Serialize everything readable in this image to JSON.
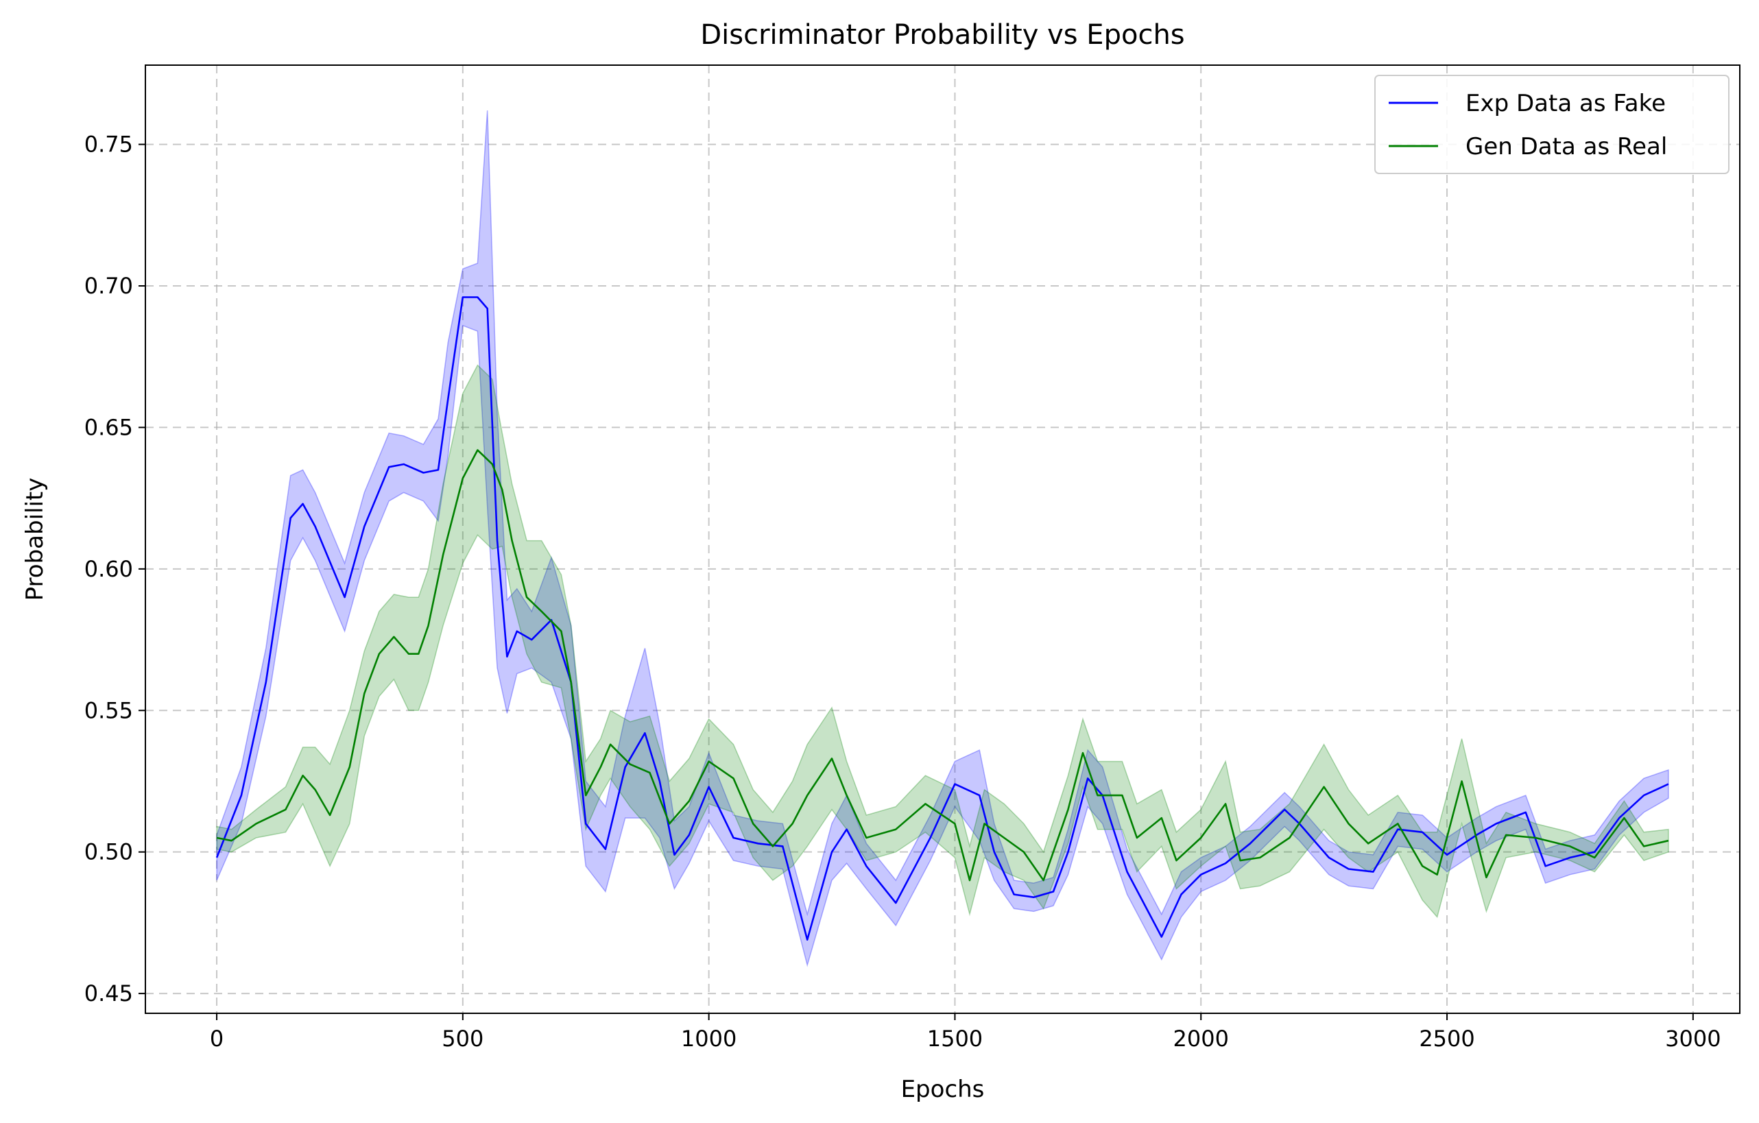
{
  "chart_data": {
    "type": "line",
    "title": "Discriminator Probability vs Epochs",
    "xlabel": "Epochs",
    "ylabel": "Probability",
    "xlim": [
      -145,
      3095
    ],
    "ylim": [
      0.443,
      0.778
    ],
    "xticks": [
      0,
      500,
      1000,
      1500,
      2000,
      2500,
      3000
    ],
    "xtick_labels": [
      "0",
      "500",
      "1000",
      "1500",
      "2000",
      "2500",
      "3000"
    ],
    "yticks": [
      0.45,
      0.5,
      0.55,
      0.6,
      0.65,
      0.7,
      0.75
    ],
    "ytick_labels": [
      "0.45",
      "0.50",
      "0.55",
      "0.60",
      "0.65",
      "0.70",
      "0.75"
    ],
    "grid": true,
    "legend_position": "top-right",
    "series": [
      {
        "name": "Exp Data as Fake",
        "color": "#0000ff",
        "band_color": "#0000ff",
        "x": [
          0,
          50,
          100,
          150,
          175,
          200,
          260,
          300,
          350,
          380,
          420,
          450,
          470,
          500,
          530,
          550,
          570,
          590,
          610,
          640,
          680,
          720,
          750,
          790,
          830,
          870,
          900,
          930,
          960,
          1000,
          1050,
          1100,
          1150,
          1200,
          1250,
          1280,
          1320,
          1380,
          1450,
          1500,
          1550,
          1580,
          1620,
          1660,
          1700,
          1730,
          1770,
          1800,
          1850,
          1920,
          1960,
          2000,
          2050,
          2100,
          2170,
          2200,
          2260,
          2300,
          2350,
          2400,
          2450,
          2500,
          2560,
          2600,
          2660,
          2700,
          2750,
          2800,
          2850,
          2900,
          2950
        ],
        "y": [
          0.498,
          0.52,
          0.56,
          0.618,
          0.623,
          0.615,
          0.59,
          0.615,
          0.636,
          0.637,
          0.634,
          0.635,
          0.66,
          0.696,
          0.696,
          0.692,
          0.61,
          0.569,
          0.578,
          0.575,
          0.582,
          0.56,
          0.51,
          0.501,
          0.53,
          0.542,
          0.525,
          0.499,
          0.506,
          0.523,
          0.505,
          0.503,
          0.502,
          0.469,
          0.5,
          0.508,
          0.495,
          0.482,
          0.505,
          0.524,
          0.52,
          0.5,
          0.485,
          0.484,
          0.486,
          0.5,
          0.526,
          0.52,
          0.493,
          0.47,
          0.485,
          0.492,
          0.496,
          0.503,
          0.515,
          0.51,
          0.498,
          0.494,
          0.493,
          0.508,
          0.507,
          0.499,
          0.506,
          0.51,
          0.514,
          0.495,
          0.498,
          0.5,
          0.512,
          0.52,
          0.524
        ],
        "band": [
          0.008,
          0.01,
          0.012,
          0.015,
          0.012,
          0.012,
          0.012,
          0.012,
          0.012,
          0.01,
          0.01,
          0.018,
          0.02,
          0.01,
          0.012,
          0.07,
          0.045,
          0.02,
          0.015,
          0.01,
          0.022,
          0.02,
          0.015,
          0.015,
          0.018,
          0.03,
          0.02,
          0.012,
          0.01,
          0.012,
          0.008,
          0.008,
          0.008,
          0.009,
          0.01,
          0.012,
          0.008,
          0.008,
          0.008,
          0.008,
          0.016,
          0.01,
          0.005,
          0.005,
          0.005,
          0.008,
          0.01,
          0.01,
          0.008,
          0.008,
          0.008,
          0.006,
          0.006,
          0.006,
          0.006,
          0.006,
          0.006,
          0.006,
          0.006,
          0.006,
          0.006,
          0.006,
          0.006,
          0.006,
          0.006,
          0.006,
          0.006,
          0.006,
          0.006,
          0.006,
          0.005
        ]
      },
      {
        "name": "Gen Data as Real",
        "color": "#008000",
        "band_color": "#008000",
        "x": [
          0,
          30,
          80,
          140,
          175,
          200,
          230,
          270,
          300,
          330,
          360,
          390,
          410,
          430,
          460,
          500,
          530,
          560,
          580,
          600,
          630,
          660,
          700,
          720,
          750,
          780,
          800,
          840,
          880,
          920,
          960,
          1000,
          1050,
          1090,
          1130,
          1170,
          1200,
          1250,
          1280,
          1320,
          1380,
          1440,
          1500,
          1530,
          1560,
          1600,
          1640,
          1680,
          1730,
          1760,
          1790,
          1840,
          1870,
          1920,
          1950,
          2000,
          2050,
          2080,
          2120,
          2180,
          2250,
          2300,
          2340,
          2400,
          2450,
          2480,
          2530,
          2580,
          2620,
          2680,
          2750,
          2800,
          2860,
          2900,
          2950
        ],
        "y": [
          0.505,
          0.504,
          0.51,
          0.515,
          0.527,
          0.522,
          0.513,
          0.53,
          0.556,
          0.57,
          0.576,
          0.57,
          0.57,
          0.58,
          0.605,
          0.632,
          0.642,
          0.637,
          0.628,
          0.61,
          0.59,
          0.585,
          0.578,
          0.56,
          0.52,
          0.53,
          0.538,
          0.531,
          0.528,
          0.51,
          0.518,
          0.532,
          0.526,
          0.51,
          0.502,
          0.51,
          0.52,
          0.533,
          0.52,
          0.505,
          0.508,
          0.517,
          0.51,
          0.49,
          0.51,
          0.505,
          0.5,
          0.49,
          0.515,
          0.535,
          0.52,
          0.52,
          0.505,
          0.512,
          0.497,
          0.505,
          0.517,
          0.497,
          0.498,
          0.505,
          0.523,
          0.51,
          0.503,
          0.51,
          0.495,
          0.492,
          0.525,
          0.491,
          0.506,
          0.505,
          0.502,
          0.498,
          0.512,
          0.502,
          0.504
        ],
        "band": [
          0.004,
          0.004,
          0.005,
          0.008,
          0.01,
          0.015,
          0.018,
          0.02,
          0.015,
          0.015,
          0.015,
          0.02,
          0.02,
          0.02,
          0.025,
          0.03,
          0.03,
          0.03,
          0.02,
          0.02,
          0.02,
          0.025,
          0.02,
          0.02,
          0.012,
          0.01,
          0.012,
          0.015,
          0.02,
          0.015,
          0.015,
          0.015,
          0.012,
          0.012,
          0.012,
          0.015,
          0.018,
          0.018,
          0.012,
          0.008,
          0.008,
          0.01,
          0.012,
          0.012,
          0.012,
          0.012,
          0.01,
          0.01,
          0.012,
          0.012,
          0.012,
          0.012,
          0.012,
          0.01,
          0.01,
          0.01,
          0.015,
          0.01,
          0.01,
          0.012,
          0.015,
          0.012,
          0.01,
          0.01,
          0.012,
          0.015,
          0.015,
          0.012,
          0.008,
          0.005,
          0.005,
          0.005,
          0.006,
          0.005,
          0.004
        ]
      }
    ]
  }
}
